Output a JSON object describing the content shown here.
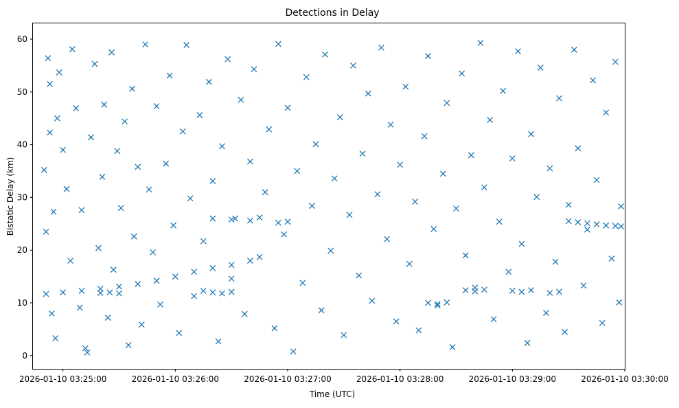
{
  "chart_data": {
    "type": "scatter",
    "title": "Detections in Delay",
    "xlabel": "Time (UTC)",
    "ylabel": "Bistatic Delay (km)",
    "x_ticks": [
      "2026-01-10 03:25:00",
      "2026-01-10 03:26:00",
      "2026-01-10 03:27:00",
      "2026-01-10 03:28:00",
      "2026-01-10 03:29:00",
      "2026-01-10 03:30:00"
    ],
    "y_ticks": [
      "0",
      "10",
      "20",
      "30",
      "40",
      "50",
      "60"
    ],
    "xlim": [
      "2026-01-10 03:24:44",
      "2026-01-10 03:30:00"
    ],
    "ylim": [
      -2.5,
      63
    ],
    "marker": "x",
    "color": "#1f77b4",
    "grid": false,
    "legend": "none",
    "series": [
      {
        "points": [
          [
            "03:24:50",
            35.2
          ],
          [
            "03:24:51",
            23.5
          ],
          [
            "03:24:52",
            56.4
          ],
          [
            "03:24:53",
            51.5
          ],
          [
            "03:24:53",
            42.3
          ],
          [
            "03:24:54",
            8.0
          ],
          [
            "03:24:55",
            27.3
          ],
          [
            "03:24:56",
            3.3
          ],
          [
            "03:24:57",
            45.0
          ],
          [
            "03:24:58",
            53.7
          ],
          [
            "03:25:00",
            39.0
          ],
          [
            "03:25:02",
            31.6
          ],
          [
            "03:25:04",
            18.0
          ],
          [
            "03:25:05",
            58.1
          ],
          [
            "03:25:07",
            46.9
          ],
          [
            "03:25:09",
            9.1
          ],
          [
            "03:25:10",
            27.6
          ],
          [
            "03:25:12",
            1.4
          ],
          [
            "03:25:13",
            0.6
          ],
          [
            "03:25:15",
            41.4
          ],
          [
            "03:25:17",
            55.3
          ],
          [
            "03:25:19",
            20.4
          ],
          [
            "03:25:21",
            33.9
          ],
          [
            "03:25:22",
            47.6
          ],
          [
            "03:25:24",
            7.2
          ],
          [
            "03:25:26",
            57.5
          ],
          [
            "03:25:27",
            16.3
          ],
          [
            "03:25:29",
            38.8
          ],
          [
            "03:25:31",
            28.0
          ],
          [
            "03:25:33",
            44.4
          ],
          [
            "03:25:35",
            2.0
          ],
          [
            "03:25:37",
            50.6
          ],
          [
            "03:25:38",
            22.6
          ],
          [
            "03:25:40",
            35.8
          ],
          [
            "03:25:42",
            5.9
          ],
          [
            "03:25:44",
            59.0
          ],
          [
            "03:25:46",
            31.5
          ],
          [
            "03:25:48",
            19.6
          ],
          [
            "03:25:50",
            47.3
          ],
          [
            "03:25:52",
            9.7
          ],
          [
            "03:25:55",
            36.4
          ],
          [
            "03:25:57",
            53.1
          ],
          [
            "03:25:59",
            24.7
          ],
          [
            "03:26:02",
            4.3
          ],
          [
            "03:26:04",
            42.5
          ],
          [
            "03:26:06",
            58.9
          ],
          [
            "03:26:08",
            29.8
          ],
          [
            "03:26:10",
            11.3
          ],
          [
            "03:26:13",
            45.6
          ],
          [
            "03:26:15",
            21.7
          ],
          [
            "03:26:18",
            51.9
          ],
          [
            "03:26:20",
            33.1
          ],
          [
            "03:26:23",
            2.7
          ],
          [
            "03:26:25",
            39.7
          ],
          [
            "03:26:28",
            56.2
          ],
          [
            "03:26:30",
            14.6
          ],
          [
            "03:26:32",
            26.0
          ],
          [
            "03:26:35",
            48.5
          ],
          [
            "03:26:37",
            7.9
          ],
          [
            "03:26:40",
            36.8
          ],
          [
            "03:26:42",
            54.3
          ],
          [
            "03:26:45",
            18.7
          ],
          [
            "03:26:48",
            31.0
          ],
          [
            "03:26:50",
            42.9
          ],
          [
            "03:26:53",
            5.2
          ],
          [
            "03:26:55",
            59.1
          ],
          [
            "03:26:58",
            23.0
          ],
          [
            "03:27:00",
            47.0
          ],
          [
            "03:27:03",
            0.8
          ],
          [
            "03:27:05",
            35.0
          ],
          [
            "03:27:08",
            13.8
          ],
          [
            "03:27:10",
            52.8
          ],
          [
            "03:27:13",
            28.4
          ],
          [
            "03:27:15",
            40.1
          ],
          [
            "03:27:18",
            8.6
          ],
          [
            "03:27:20",
            57.1
          ],
          [
            "03:27:23",
            19.9
          ],
          [
            "03:27:25",
            33.6
          ],
          [
            "03:27:28",
            45.2
          ],
          [
            "03:27:30",
            3.9
          ],
          [
            "03:27:33",
            26.7
          ],
          [
            "03:27:35",
            55.0
          ],
          [
            "03:27:38",
            15.2
          ],
          [
            "03:27:40",
            38.3
          ],
          [
            "03:27:43",
            49.7
          ],
          [
            "03:27:45",
            10.4
          ],
          [
            "03:27:48",
            30.6
          ],
          [
            "03:27:50",
            58.4
          ],
          [
            "03:27:53",
            22.1
          ],
          [
            "03:27:55",
            43.8
          ],
          [
            "03:27:58",
            6.5
          ],
          [
            "03:28:00",
            36.2
          ],
          [
            "03:28:03",
            51.0
          ],
          [
            "03:28:05",
            17.4
          ],
          [
            "03:28:08",
            29.2
          ],
          [
            "03:28:10",
            4.8
          ],
          [
            "03:28:13",
            41.6
          ],
          [
            "03:28:15",
            56.8
          ],
          [
            "03:28:18",
            24.0
          ],
          [
            "03:28:20",
            9.5
          ],
          [
            "03:28:23",
            34.5
          ],
          [
            "03:28:25",
            47.9
          ],
          [
            "03:28:28",
            1.6
          ],
          [
            "03:28:30",
            27.9
          ],
          [
            "03:28:33",
            53.5
          ],
          [
            "03:28:35",
            19.0
          ],
          [
            "03:28:38",
            38.0
          ],
          [
            "03:28:40",
            12.9
          ],
          [
            "03:28:43",
            59.3
          ],
          [
            "03:28:45",
            31.9
          ],
          [
            "03:28:48",
            44.7
          ],
          [
            "03:28:50",
            6.9
          ],
          [
            "03:28:53",
            25.4
          ],
          [
            "03:28:55",
            50.2
          ],
          [
            "03:28:58",
            15.9
          ],
          [
            "03:29:00",
            37.4
          ],
          [
            "03:29:03",
            57.7
          ],
          [
            "03:29:05",
            21.2
          ],
          [
            "03:29:08",
            2.4
          ],
          [
            "03:29:10",
            42.0
          ],
          [
            "03:29:13",
            30.1
          ],
          [
            "03:29:15",
            54.6
          ],
          [
            "03:29:18",
            8.1
          ],
          [
            "03:29:20",
            35.5
          ],
          [
            "03:29:23",
            17.8
          ],
          [
            "03:29:25",
            48.8
          ],
          [
            "03:29:28",
            4.5
          ],
          [
            "03:29:30",
            28.6
          ],
          [
            "03:29:33",
            58.0
          ],
          [
            "03:29:35",
            39.3
          ],
          [
            "03:29:38",
            13.3
          ],
          [
            "03:29:40",
            23.9
          ],
          [
            "03:29:43",
            52.2
          ],
          [
            "03:29:45",
            33.3
          ],
          [
            "03:29:48",
            6.2
          ],
          [
            "03:29:50",
            46.1
          ],
          [
            "03:29:53",
            18.4
          ],
          [
            "03:29:55",
            55.7
          ],
          [
            "03:29:57",
            10.1
          ],
          [
            "03:29:58",
            28.3
          ],
          [
            "03:24:51",
            11.7
          ],
          [
            "03:25:00",
            12.0
          ],
          [
            "03:25:10",
            12.3
          ],
          [
            "03:25:20",
            12.7
          ],
          [
            "03:25:30",
            13.1
          ],
          [
            "03:25:40",
            13.6
          ],
          [
            "03:25:50",
            14.2
          ],
          [
            "03:26:00",
            15.0
          ],
          [
            "03:26:10",
            15.9
          ],
          [
            "03:26:20",
            16.6
          ],
          [
            "03:26:30",
            17.2
          ],
          [
            "03:26:40",
            18.0
          ],
          [
            "03:25:20",
            11.9
          ],
          [
            "03:25:25",
            12.0
          ],
          [
            "03:25:30",
            11.8
          ],
          [
            "03:26:15",
            12.3
          ],
          [
            "03:26:20",
            12.0
          ],
          [
            "03:26:25",
            11.8
          ],
          [
            "03:26:30",
            12.1
          ],
          [
            "03:26:20",
            26.0
          ],
          [
            "03:26:30",
            25.8
          ],
          [
            "03:26:40",
            25.6
          ],
          [
            "03:26:45",
            26.2
          ],
          [
            "03:26:55",
            25.2
          ],
          [
            "03:27:00",
            25.4
          ],
          [
            "03:28:15",
            10.0
          ],
          [
            "03:28:20",
            9.8
          ],
          [
            "03:28:25",
            10.1
          ],
          [
            "03:28:35",
            12.4
          ],
          [
            "03:28:40",
            12.2
          ],
          [
            "03:28:45",
            12.5
          ],
          [
            "03:29:00",
            12.3
          ],
          [
            "03:29:05",
            12.1
          ],
          [
            "03:29:10",
            12.4
          ],
          [
            "03:29:20",
            11.9
          ],
          [
            "03:29:25",
            12.1
          ],
          [
            "03:29:30",
            25.5
          ],
          [
            "03:29:35",
            25.3
          ],
          [
            "03:29:40",
            25.1
          ],
          [
            "03:29:45",
            24.9
          ],
          [
            "03:29:50",
            24.7
          ],
          [
            "03:29:55",
            24.6
          ],
          [
            "03:29:58",
            24.5
          ]
        ]
      }
    ]
  }
}
